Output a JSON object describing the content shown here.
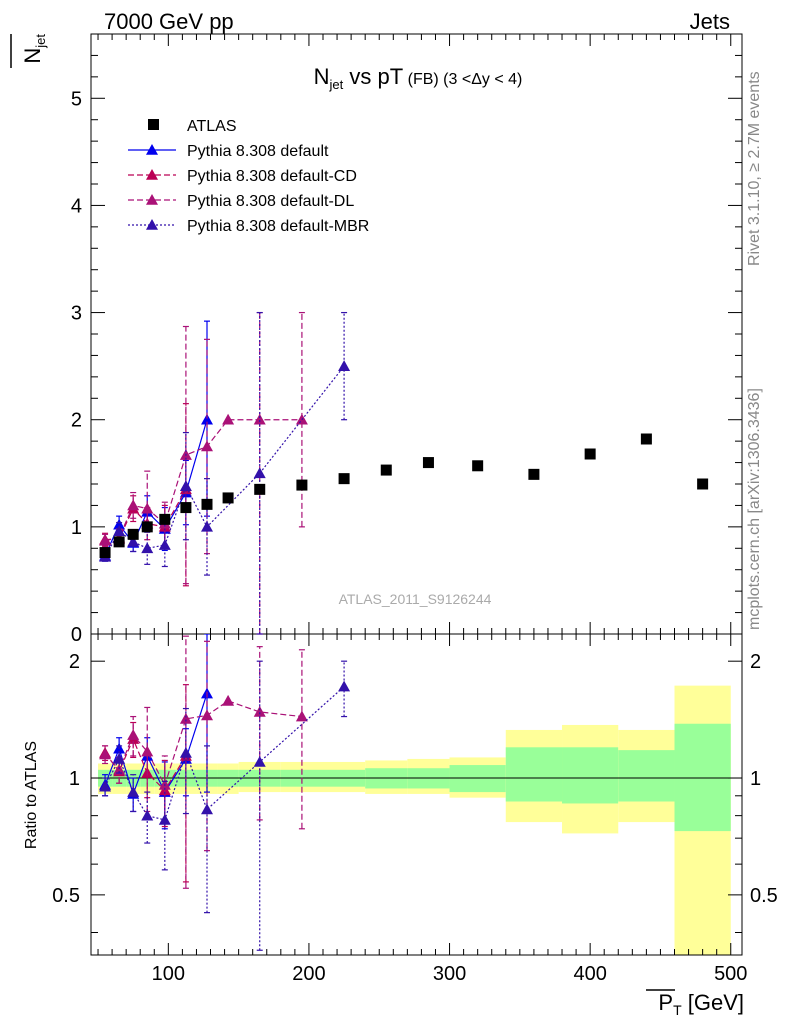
{
  "header": {
    "left": "7000 GeV pp",
    "right": "Jets"
  },
  "side_labels": {
    "rivet": "Rivet 3.1.10, ≥ 2.7M events",
    "mcplots": "mcplots.cern.ch [arXiv:1306.3436]"
  },
  "watermark": "ATLAS_2011_S9126244",
  "title": {
    "main": "N",
    "main_sub": "jet",
    "rest": " vs pT",
    "small": " (FB) (3 <Δy < 4)"
  },
  "axes": {
    "upper_ylabel": "N",
    "upper_ylabel_sub": "jet",
    "lower_ylabel": "Ratio to ATLAS",
    "xlabel": "P",
    "xlabel_sub": "T",
    "xlabel_unit": " [GeV]",
    "x_ticks": [
      100,
      200,
      300,
      400,
      500
    ],
    "upper_y_ticks": [
      0,
      1,
      2,
      3,
      4,
      5
    ],
    "ratio_y_ticks": [
      0.5,
      1,
      2
    ]
  },
  "colors": {
    "atlas": "#000000",
    "default": "#0000ee",
    "cd": "#bb0055",
    "dl": "#aa1177",
    "mbr": "#3311aa",
    "band_inner": "#99ff99",
    "band_outer": "#ffff99"
  },
  "chart_data": {
    "type": "scatter",
    "title": "Njet vs pT (FB) (3 <Δy < 4)",
    "xlabel": "PT [GeV]",
    "ylabel": "Njet",
    "xlim": [
      45,
      508
    ],
    "ylim": [
      0,
      5.6
    ],
    "ratio_ylim": [
      0.35,
      2.35
    ],
    "ratio_log": true,
    "legend_position": "top-left",
    "bins": [
      {
        "lo": 50,
        "hi": 60
      },
      {
        "lo": 60,
        "hi": 70
      },
      {
        "lo": 70,
        "hi": 80
      },
      {
        "lo": 80,
        "hi": 90
      },
      {
        "lo": 90,
        "hi": 105
      },
      {
        "lo": 105,
        "hi": 120
      },
      {
        "lo": 120,
        "hi": 135
      },
      {
        "lo": 135,
        "hi": 150
      },
      {
        "lo": 150,
        "hi": 180
      },
      {
        "lo": 180,
        "hi": 210
      },
      {
        "lo": 210,
        "hi": 240
      },
      {
        "lo": 240,
        "hi": 270
      },
      {
        "lo": 270,
        "hi": 300
      },
      {
        "lo": 300,
        "hi": 340
      },
      {
        "lo": 340,
        "hi": 380
      },
      {
        "lo": 380,
        "hi": 420
      },
      {
        "lo": 420,
        "hi": 460
      },
      {
        "lo": 460,
        "hi": 500
      }
    ],
    "atlas": {
      "name": "ATLAS",
      "x": [
        55,
        65,
        75,
        85,
        97.5,
        112.5,
        127.5,
        142.5,
        165,
        195,
        225,
        255,
        285,
        320,
        360,
        400,
        440,
        480
      ],
      "y": [
        0.76,
        0.86,
        0.93,
        1.0,
        1.07,
        1.18,
        1.21,
        1.27,
        1.35,
        1.39,
        1.45,
        1.53,
        1.6,
        1.57,
        1.49,
        1.68,
        1.82,
        1.4
      ]
    },
    "band_inner": [
      0.95,
      0.95,
      0.95,
      0.95,
      0.95,
      0.95,
      0.95,
      0.95,
      0.95,
      0.95,
      0.95,
      0.94,
      0.94,
      0.92,
      0.87,
      0.86,
      0.87,
      0.73
    ],
    "band_inner_hi": [
      1.05,
      1.05,
      1.05,
      1.05,
      1.05,
      1.05,
      1.05,
      1.05,
      1.05,
      1.05,
      1.05,
      1.06,
      1.06,
      1.08,
      1.2,
      1.2,
      1.18,
      1.38
    ],
    "band_outer": [
      0.91,
      0.91,
      0.91,
      0.91,
      0.91,
      0.91,
      0.91,
      0.91,
      0.92,
      0.92,
      0.92,
      0.91,
      0.91,
      0.89,
      0.77,
      0.72,
      0.77,
      0.35
    ],
    "band_outer_hi": [
      1.09,
      1.09,
      1.09,
      1.09,
      1.09,
      1.09,
      1.09,
      1.09,
      1.1,
      1.1,
      1.1,
      1.11,
      1.12,
      1.13,
      1.33,
      1.37,
      1.33,
      1.73
    ],
    "series": [
      {
        "name": "Pythia 8.308 default",
        "style": "solid",
        "x": [
          55,
          65,
          75,
          85,
          97.5,
          112.5,
          127.5
        ],
        "y": [
          0.73,
          1.02,
          0.85,
          1.14,
          0.98,
          1.32,
          2.0
        ],
        "yerr_lo": [
          0.05,
          0.08,
          0.08,
          0.15,
          0.2,
          0.3,
          0.9
        ],
        "yerr_hi": [
          0.05,
          0.08,
          0.08,
          0.15,
          0.2,
          0.3,
          0.92
        ],
        "ratio": [
          0.96,
          1.19,
          0.91,
          1.14,
          0.92,
          1.12,
          1.65
        ],
        "ratio_err": [
          0.06,
          0.08,
          0.09,
          0.13,
          0.18,
          0.22,
          0.73
        ]
      },
      {
        "name": "Pythia 8.308 default-CD",
        "style": "dashed",
        "x": [
          55,
          65,
          75,
          85,
          97.5,
          112.5
        ],
        "y": [
          0.88,
          0.89,
          1.17,
          1.03,
          1.0,
          1.35
        ],
        "yerr_lo": [
          0.06,
          0.07,
          0.12,
          0.15,
          0.2,
          0.9
        ],
        "yerr_hi": [
          0.06,
          0.07,
          0.12,
          0.15,
          0.2,
          0.8
        ],
        "ratio": [
          1.16,
          1.04,
          1.26,
          1.03,
          0.93,
          1.14
        ],
        "ratio_err": [
          0.05,
          0.07,
          0.13,
          0.14,
          0.18,
          0.6
        ]
      },
      {
        "name": "Pythia 8.308 default-DL",
        "style": "dashed",
        "x": [
          55,
          65,
          75,
          85,
          97.5,
          112.5,
          127.5,
          142.5,
          165,
          195
        ],
        "y": [
          0.87,
          0.9,
          1.2,
          1.17,
          1.03,
          1.67,
          1.75,
          2.0,
          2.0,
          2.0
        ],
        "yerr_lo": [
          0.06,
          0.08,
          0.12,
          0.15,
          0.2,
          1.2,
          1.0,
          0.0,
          2.0,
          1.0
        ],
        "yerr_hi": [
          0.06,
          0.08,
          0.12,
          0.35,
          0.2,
          1.2,
          1.0,
          0.0,
          1.0,
          1.0
        ],
        "ratio": [
          1.15,
          1.05,
          1.29,
          1.17,
          0.96,
          1.42,
          1.45,
          1.58,
          1.48,
          1.44
        ],
        "ratio_err": [
          0.06,
          0.08,
          0.15,
          0.35,
          0.18,
          0.9,
          0.8,
          0.0,
          0.7,
          0.7
        ]
      },
      {
        "name": "Pythia 8.308 default-MBR",
        "style": "dotted",
        "x": [
          55,
          65,
          75,
          85,
          97.5,
          112.5,
          127.5,
          165,
          225
        ],
        "y": [
          0.72,
          0.96,
          0.86,
          0.8,
          0.83,
          1.38,
          1.0,
          1.5,
          2.5
        ],
        "yerr_lo": [
          0.04,
          0.08,
          0.09,
          0.15,
          0.2,
          0.5,
          0.45,
          1.5,
          0.5
        ],
        "yerr_hi": [
          0.04,
          0.08,
          0.09,
          0.15,
          0.2,
          0.5,
          0.45,
          1.5,
          0.5
        ],
        "ratio": [
          0.95,
          1.12,
          0.92,
          0.8,
          0.78,
          1.16,
          0.83,
          1.1,
          1.72
        ],
        "ratio_err": [
          0.05,
          0.09,
          0.1,
          0.12,
          0.2,
          0.35,
          0.38,
          0.9,
          0.28
        ]
      }
    ]
  }
}
